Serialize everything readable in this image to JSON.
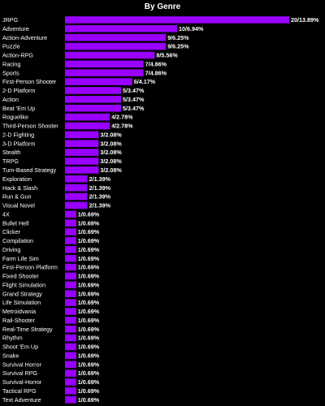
{
  "chart_data": {
    "type": "bar",
    "orientation": "horizontal",
    "title": "By Genre",
    "xlabel": "",
    "ylabel": "",
    "grid": false,
    "bar_color": "#9900ff",
    "background_color": "#000000",
    "text_color": "#ffffff",
    "xlim": [
      0,
      21
    ],
    "categories": [
      "JRPG",
      "Adventure",
      "Action-Adventure",
      "Puzzle",
      "Action-RPG",
      "Racing",
      "Sports",
      "First-Person Shooter",
      "2-D Platform",
      "Action",
      "Beat 'Em Up",
      "Roguelike",
      "Third-Person Shooter",
      "2-D Fighting",
      "3-D Platform",
      "Stealth",
      "TRPG",
      "Turn-Based Strategy",
      "Exploration",
      "Hack & Slash",
      "Run & Gun",
      "Visual Novel",
      "4X",
      "Bullet Hell",
      "Clicker",
      "Compilation",
      "Driving",
      "Farm Life Sim",
      "First-Person Platform",
      "Fixed Shooter",
      "Flight Simulation",
      "Grand Strategy",
      "Life Simulation",
      "Metroidvania",
      "Rail-Shooter",
      "Real-Time Strategy",
      "Rhythm",
      "Shoot 'Em Up",
      "Snake",
      "Survival Horror",
      "Survival RPG",
      "Survival-Horror",
      "Tactical RPG",
      "Text Adventure"
    ],
    "values": [
      20,
      10,
      9,
      9,
      8,
      7,
      7,
      6,
      5,
      5,
      5,
      4,
      4,
      3,
      3,
      3,
      3,
      3,
      2,
      2,
      2,
      2,
      1,
      1,
      1,
      1,
      1,
      1,
      1,
      1,
      1,
      1,
      1,
      1,
      1,
      1,
      1,
      1,
      1,
      1,
      1,
      1,
      1,
      1
    ],
    "data_labels": [
      "20/13.89%",
      "10/6.94%",
      "9/6.25%",
      "9/6.25%",
      "8/5.56%",
      "7/4.86%",
      "7/4.86%",
      "6/4.17%",
      "5/3.47%",
      "5/3.47%",
      "5/3.47%",
      "4/2.78%",
      "4/2.78%",
      "3/2.08%",
      "3/2.08%",
      "3/2.08%",
      "3/2.08%",
      "3/2.08%",
      "2/1.39%",
      "2/1.39%",
      "2/1.39%",
      "2/1.39%",
      "1/0.69%",
      "1/0.69%",
      "1/0.69%",
      "1/0.69%",
      "1/0.69%",
      "1/0.69%",
      "1/0.69%",
      "1/0.69%",
      "1/0.69%",
      "1/0.69%",
      "1/0.69%",
      "1/0.69%",
      "1/0.69%",
      "1/0.69%",
      "1/0.69%",
      "1/0.69%",
      "1/0.69%",
      "1/0.69%",
      "1/0.69%",
      "1/0.69%",
      "1/0.69%",
      "1/0.69%"
    ]
  }
}
